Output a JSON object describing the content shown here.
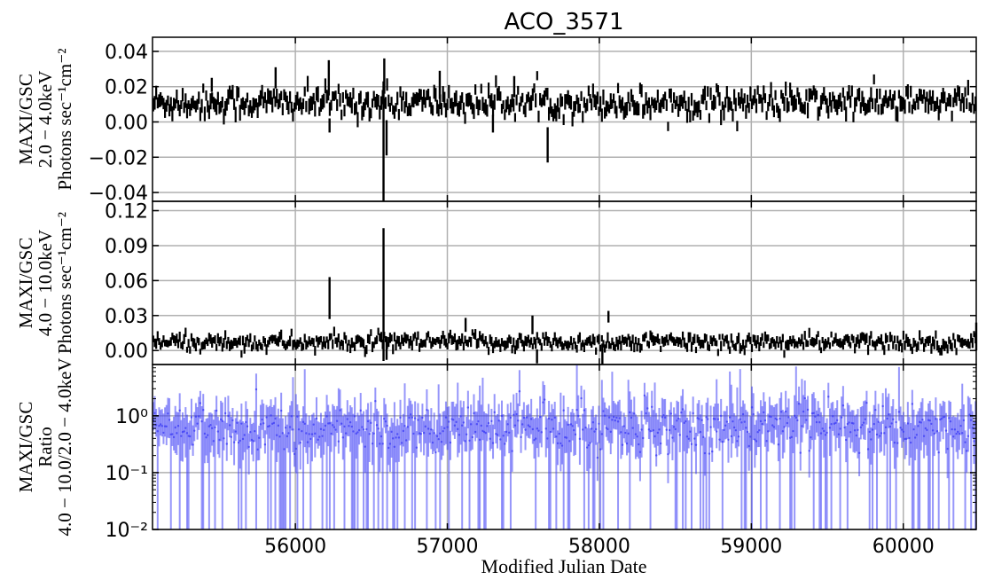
{
  "chart_data": {
    "type": "scatter",
    "title": "ACO_3571",
    "xlabel": "Modified Julian Date",
    "xlim": [
      55060,
      60480
    ],
    "x_ticks": [
      56000,
      57000,
      58000,
      59000,
      60000
    ],
    "x_tick_labels": [
      "56000",
      "57000",
      "58000",
      "59000",
      "60000"
    ],
    "grid": true,
    "panels": [
      {
        "id": "soft",
        "ylabel_lines": [
          "MAXI/GSC",
          "2.0 − 4.0keV",
          "Photons sec⁻¹cm⁻²"
        ],
        "ylim": [
          -0.045,
          0.048
        ],
        "y_scale": "linear",
        "y_ticks": [
          -0.04,
          -0.02,
          0.0,
          0.02,
          0.04
        ],
        "y_tick_labels": [
          "−0.04",
          "−0.02",
          "0.00",
          "0.02",
          "0.04"
        ],
        "color": "#000000",
        "baseline": 0.011,
        "scatter": 0.004,
        "error": 0.0035,
        "spikes": [
          {
            "x": 55450,
            "y": 0.021,
            "err": 0.004
          },
          {
            "x": 55870,
            "y": 0.025,
            "err": 0.006
          },
          {
            "x": 56220,
            "y": 0.025,
            "err": 0.01
          },
          {
            "x": 56225,
            "y": -0.002,
            "err": 0.004
          },
          {
            "x": 56580,
            "y": -0.012,
            "err": 0.035
          },
          {
            "x": 56585,
            "y": 0.026,
            "err": 0.01
          },
          {
            "x": 56600,
            "y": -0.009,
            "err": 0.01
          },
          {
            "x": 56950,
            "y": 0.021,
            "err": 0.008
          },
          {
            "x": 57300,
            "y": -0.001,
            "err": 0.005
          },
          {
            "x": 57660,
            "y": -0.013,
            "err": 0.01
          },
          {
            "x": 57440,
            "y": 0.02,
            "err": 0.006
          }
        ]
      },
      {
        "id": "hard",
        "ylabel_lines": [
          "MAXI/GSC",
          "4.0 − 10.0keV",
          "Photons sec⁻¹cm⁻²"
        ],
        "ylim": [
          -0.012,
          0.128
        ],
        "y_scale": "linear",
        "y_ticks": [
          0.0,
          0.03,
          0.06,
          0.09,
          0.12
        ],
        "y_tick_labels": [
          "0.00",
          "0.03",
          "0.06",
          "0.09",
          "0.12"
        ],
        "color": "#000000",
        "baseline": 0.007,
        "scatter": 0.0035,
        "error": 0.0035,
        "spikes": [
          {
            "x": 56225,
            "y": 0.045,
            "err": 0.018
          },
          {
            "x": 56580,
            "y": 0.048,
            "err": 0.057
          },
          {
            "x": 56600,
            "y": 0.002,
            "err": 0.01
          },
          {
            "x": 57120,
            "y": 0.022,
            "err": 0.006
          },
          {
            "x": 57560,
            "y": 0.022,
            "err": 0.008
          },
          {
            "x": 57590,
            "y": -0.005,
            "err": 0.006
          },
          {
            "x": 58020,
            "y": -0.004,
            "err": 0.01
          },
          {
            "x": 58060,
            "y": 0.029,
            "err": 0.005
          },
          {
            "x": 60480,
            "y": 0.012,
            "err": 0.012
          }
        ]
      },
      {
        "id": "ratio",
        "ylabel_lines": [
          "MAXI/GSC",
          "Ratio",
          "4.0 − 10.0/2.0 − 4.0keV"
        ],
        "ylim": [
          0.01,
          8.0
        ],
        "y_scale": "log",
        "y_ticks": [
          0.01,
          0.1,
          1.0
        ],
        "y_tick_labels": [
          "10⁻²",
          "10⁻¹",
          "10⁰"
        ],
        "color": "#3f3ff5",
        "baseline": 0.6,
        "scatter": 0.18,
        "error": 0.35
      }
    ],
    "n_bins": 560
  }
}
